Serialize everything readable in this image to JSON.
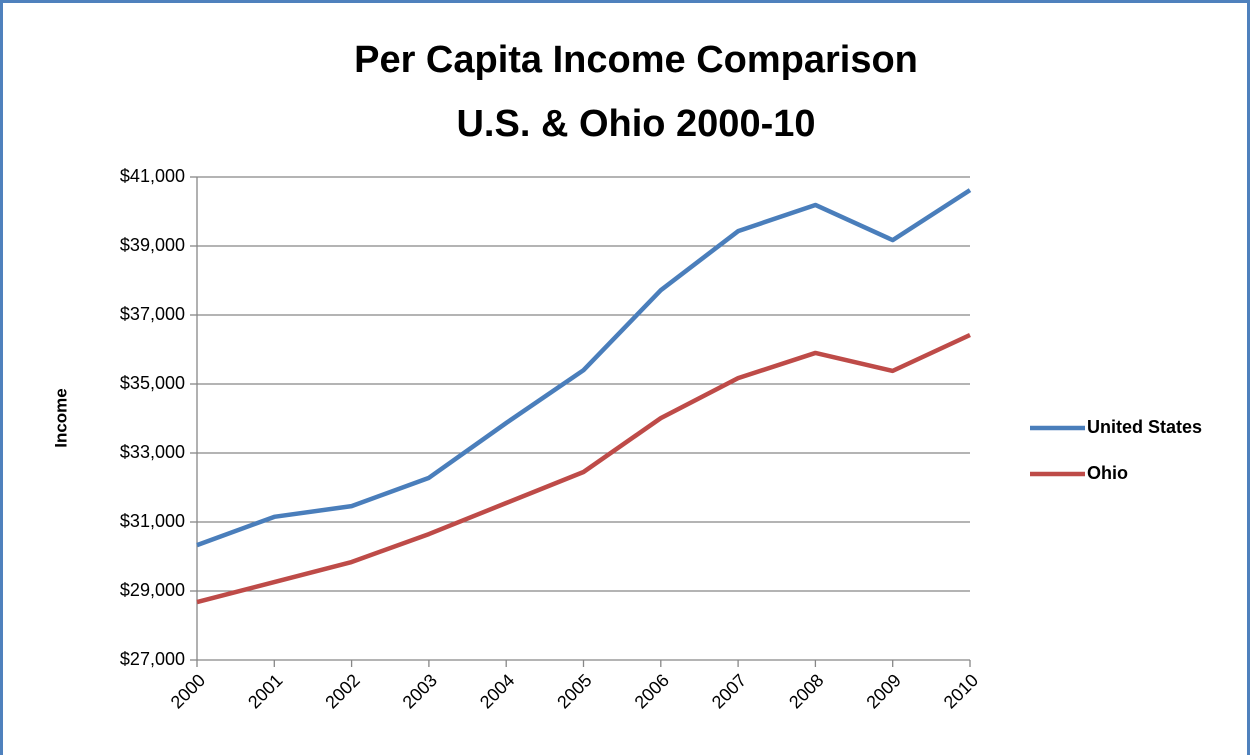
{
  "chart_data": {
    "type": "line",
    "title": [
      "Per Capita Income Comparison",
      "U.S. & Ohio 2000-10"
    ],
    "y_label": "Income",
    "categories": [
      "2000",
      "2001",
      "2002",
      "2003",
      "2004",
      "2005",
      "2006",
      "2007",
      "2008",
      "2009",
      "2010"
    ],
    "series": [
      {
        "name": "United States",
        "color": "#4a7ebb",
        "values": [
          30330,
          31150,
          31460,
          32280,
          33870,
          35400,
          37720,
          39430,
          40190,
          39170,
          40620
        ]
      },
      {
        "name": "Ohio",
        "color": "#be4b48",
        "values": [
          28680,
          29260,
          29840,
          30650,
          31550,
          32450,
          34010,
          35170,
          35900,
          35380,
          36420
        ]
      }
    ],
    "ylim": [
      27000,
      41000
    ],
    "yticks": [
      {
        "value": 27000,
        "label": "$27,000"
      },
      {
        "value": 29000,
        "label": "$29,000"
      },
      {
        "value": 31000,
        "label": "$31,000"
      },
      {
        "value": 33000,
        "label": "$33,000"
      },
      {
        "value": 35000,
        "label": "$35,000"
      },
      {
        "value": 37000,
        "label": "$37,000"
      },
      {
        "value": 39000,
        "label": "$39,000"
      },
      {
        "value": 41000,
        "label": "$41,000"
      }
    ],
    "grid": true,
    "legend": "right"
  }
}
